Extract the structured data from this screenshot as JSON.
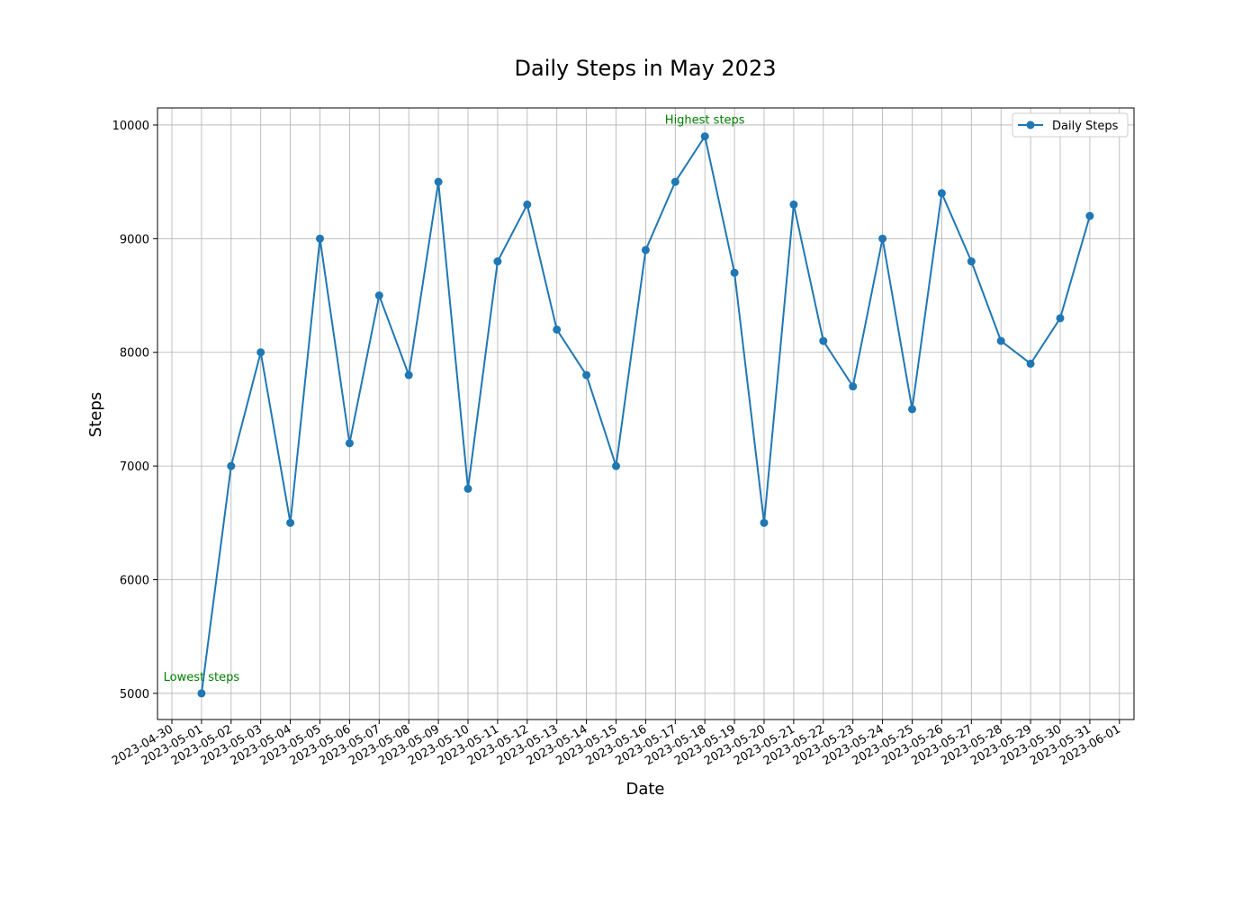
{
  "chart_data": {
    "type": "line",
    "title": "Daily Steps in May 2023",
    "xlabel": "Date",
    "ylabel": "Steps",
    "x_tick_labels": [
      "2023-04-30",
      "2023-05-01",
      "2023-05-02",
      "2023-05-03",
      "2023-05-04",
      "2023-05-05",
      "2023-05-06",
      "2023-05-07",
      "2023-05-08",
      "2023-05-09",
      "2023-05-10",
      "2023-05-11",
      "2023-05-12",
      "2023-05-13",
      "2023-05-14",
      "2023-05-15",
      "2023-05-16",
      "2023-05-17",
      "2023-05-18",
      "2023-05-19",
      "2023-05-20",
      "2023-05-21",
      "2023-05-22",
      "2023-05-23",
      "2023-05-24",
      "2023-05-25",
      "2023-05-26",
      "2023-05-27",
      "2023-05-28",
      "2023-05-29",
      "2023-05-30",
      "2023-05-31",
      "2023-06-01"
    ],
    "y_tick_labels": [
      "5000",
      "6000",
      "7000",
      "8000",
      "9000",
      "10000"
    ],
    "ylim": [
      4770,
      10150
    ],
    "grid": true,
    "legend_position": "top-right",
    "series": [
      {
        "name": "Daily Steps",
        "color": "#1f77b4",
        "marker": "circle",
        "x": [
          "2023-05-01",
          "2023-05-02",
          "2023-05-03",
          "2023-05-04",
          "2023-05-05",
          "2023-05-06",
          "2023-05-07",
          "2023-05-08",
          "2023-05-09",
          "2023-05-10",
          "2023-05-11",
          "2023-05-12",
          "2023-05-13",
          "2023-05-14",
          "2023-05-15",
          "2023-05-16",
          "2023-05-17",
          "2023-05-18",
          "2023-05-19",
          "2023-05-20",
          "2023-05-21",
          "2023-05-22",
          "2023-05-23",
          "2023-05-24",
          "2023-05-25",
          "2023-05-26",
          "2023-05-27",
          "2023-05-28",
          "2023-05-29",
          "2023-05-30",
          "2023-05-31"
        ],
        "values": [
          5000,
          7000,
          8000,
          6500,
          9000,
          7200,
          8500,
          7800,
          9500,
          6800,
          8800,
          9300,
          8200,
          7800,
          7000,
          8900,
          9500,
          9900,
          8700,
          6500,
          9300,
          8100,
          7700,
          9000,
          7500,
          9400,
          8800,
          8100,
          7900,
          8300,
          9200
        ]
      }
    ],
    "annotations": [
      {
        "text": "Lowest steps",
        "x": "2023-05-01",
        "y": 5000,
        "color": "#008000"
      },
      {
        "text": "Highest steps",
        "x": "2023-05-18",
        "y": 9900,
        "color": "#008000"
      }
    ]
  }
}
